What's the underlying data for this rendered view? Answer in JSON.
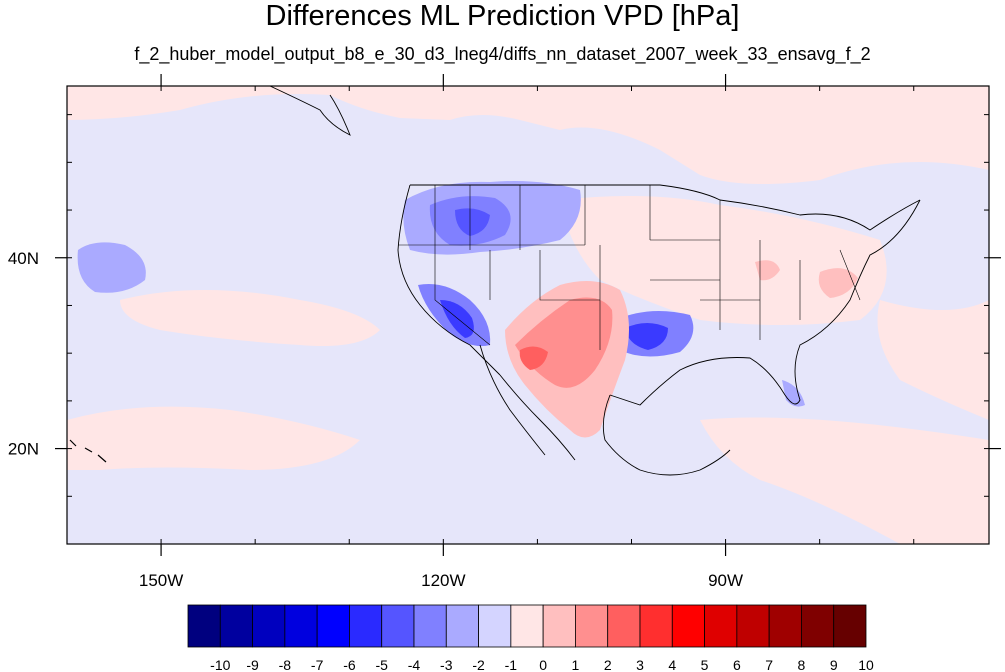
{
  "title": "Differences ML Prediction VPD [hPa]",
  "subtitle": "f_2_huber_model_output_b8_e_30_d3_lneg4/diffs_nn_dataset_2007_week_33_ensavg_f_2",
  "map": {
    "lon_range": [
      -160,
      -62
    ],
    "lat_range": [
      10,
      58
    ],
    "x_ticks": [
      {
        "lon": -150,
        "label": "150W"
      },
      {
        "lon": -120,
        "label": "120W"
      },
      {
        "lon": -90,
        "label": "90W"
      }
    ],
    "y_ticks": [
      {
        "lat": 40,
        "label": "40N"
      },
      {
        "lat": 20,
        "label": "20N"
      }
    ],
    "background_color": "#e6e6fa"
  },
  "colorbar": {
    "labels": [
      "-10",
      "-9",
      "-8",
      "-7",
      "-6",
      "-5",
      "-4",
      "-3",
      "-2",
      "-1",
      "0",
      "1",
      "2",
      "3",
      "4",
      "5",
      "6",
      "7",
      "8",
      "9",
      "10"
    ],
    "colors": [
      "#00007f",
      "#00009f",
      "#0000bf",
      "#0000df",
      "#0000ff",
      "#2a2aff",
      "#5555ff",
      "#8080ff",
      "#aaaaff",
      "#d4d4ff",
      "#ffe6e6",
      "#ffbfbf",
      "#ff8f8f",
      "#ff5f5f",
      "#ff2f2f",
      "#ff0000",
      "#df0000",
      "#bf0000",
      "#9f0000",
      "#7f0000",
      "#660000"
    ]
  }
}
